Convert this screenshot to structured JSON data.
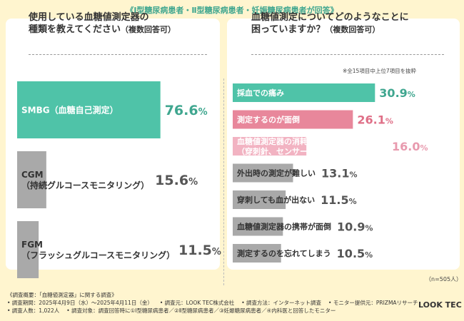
{
  "banner": "《Ⅰ型糖尿病患者・Ⅱ型糖尿病患者・妊娠糖尿病患者が回答》",
  "left_title": {
    "line1": "使用している血糖値測定器の",
    "line2": "種類を教えてください",
    "suffix": "（複数回答可）"
  },
  "right_title": {
    "line1": "血糖値測定についてどのようなことに",
    "line2": "困っていますか？",
    "suffix": "（複数回答可）"
  },
  "note": "※全15項目中上位7項目を抜粋",
  "n_note": "（n=505人）",
  "colors": {
    "teal": "#4fc3a8",
    "pink": "#e8879b",
    "lightpink": "#f2b3c2",
    "gray": "#a9a9a9",
    "text_teal": "#3fa68f",
    "text_pink": "#df6f87",
    "text_lightpink": "#e89aae",
    "text_gray": "#555555",
    "background": "#fff5cf"
  },
  "chart_data": [
    {
      "type": "bar",
      "orientation": "horizontal",
      "categories": [
        "SMBG（血糖自己測定）",
        "CGM（持続グルコースモニタリング）",
        "FGM（フラッシュグルコースモニタリング）"
      ],
      "category_display": [
        [
          "SMBG（血糖自己測定）"
        ],
        [
          "CGM",
          "（持続グルコースモニタリング）"
        ],
        [
          "FGM",
          "（フラッシュグルコースモニタリング）"
        ]
      ],
      "values": [
        76.6,
        15.6,
        11.5
      ],
      "unit": "%",
      "xlim": [
        0,
        100
      ],
      "bar_colors": [
        "teal",
        "gray",
        "gray"
      ],
      "label_colors": [
        "text_teal",
        "text_gray",
        "text_gray"
      ]
    },
    {
      "type": "bar",
      "orientation": "horizontal",
      "categories": [
        "採血での痛み",
        "測定するのが面倒",
        "血糖値測定器の消耗品（穿刺針、センサーなど）のコストが高い",
        "外出時の測定が難しい",
        "穿刺しても血が出ない",
        "血糖値測定器の携帯が面倒",
        "測定するのを忘れてしまう"
      ],
      "category_display": [
        [
          "採血での痛み"
        ],
        [
          "測定するのが面倒"
        ],
        [
          "血糖値測定器の消耗品",
          "（穿刺針、センサーなど）のコストが高い"
        ],
        [
          "外出時の測定が難しい"
        ],
        [
          "穿刺しても血が出ない"
        ],
        [
          "血糖値測定器の携帯が面倒"
        ],
        [
          "測定するのを忘れてしまう"
        ]
      ],
      "values": [
        30.9,
        26.1,
        16.0,
        13.1,
        11.5,
        10.9,
        10.5
      ],
      "unit": "%",
      "xlim": [
        0,
        100
      ],
      "bar_colors": [
        "teal",
        "pink",
        "lightpink",
        "gray",
        "gray",
        "gray",
        "gray"
      ],
      "label_colors": [
        "text_teal",
        "text_pink",
        "text_lightpink",
        "text_gray",
        "text_gray",
        "text_gray",
        "text_gray"
      ]
    }
  ],
  "footer": {
    "line1": [
      "《調査概要：「血糖値測定器」に関する調査》"
    ],
    "line2": [
      "• 調査期間：2025年4月9日（水）〜2025年4月11日（金）",
      "• 調査元：LOOK TEC株式会社",
      "• 調査方法：インターネット調査",
      "• モニター提供元：PRIZMAリサーチ"
    ],
    "line3": [
      "• 調査人数：1,022人",
      "• 調査対象：調査回答時に①Ⅰ型糖尿病患者／②Ⅱ型糖尿病患者／③妊娠糖尿病患者／④内科医と回答したモニター"
    ]
  },
  "brand": "LOOK TEC"
}
